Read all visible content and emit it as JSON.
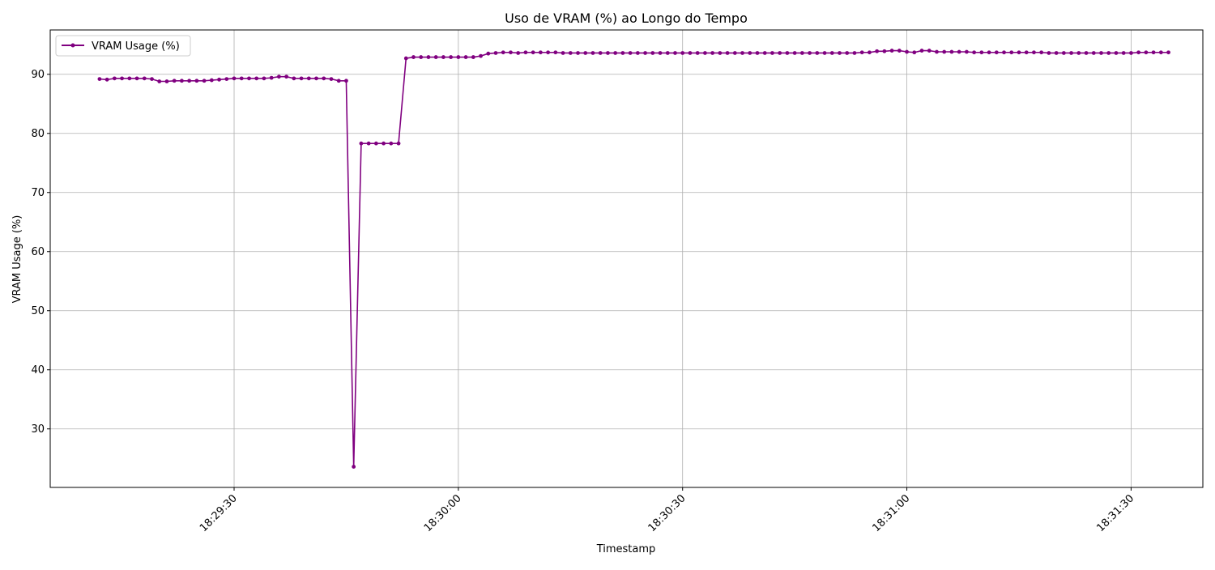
{
  "chart_data": {
    "type": "line",
    "title": "Uso de VRAM (%) ao Longo do Tempo",
    "xlabel": "Timestamp",
    "ylabel": "VRAM Usage (%)",
    "x_ticks": [
      "18:29:30",
      "18:30:00",
      "18:30:30",
      "18:31:00",
      "18:31:30"
    ],
    "x_tick_seconds": [
      30,
      60,
      90,
      120,
      150
    ],
    "y_ticks": [
      30,
      40,
      50,
      60,
      70,
      80,
      90
    ],
    "xlim_seconds": [
      5.4,
      159.6
    ],
    "ylim": [
      20.1,
      97.5
    ],
    "grid": true,
    "legend": {
      "position": "top-left",
      "entries": [
        "VRAM Usage (%)"
      ]
    },
    "color": "#800080",
    "x_start_seconds": 12,
    "x_step_seconds": 1,
    "series": [
      {
        "name": "VRAM Usage (%)",
        "values": [
          89.2,
          89.1,
          89.3,
          89.3,
          89.3,
          89.3,
          89.3,
          89.2,
          88.8,
          88.8,
          88.9,
          88.9,
          88.9,
          88.9,
          88.9,
          89.0,
          89.1,
          89.2,
          89.3,
          89.3,
          89.3,
          89.3,
          89.3,
          89.4,
          89.6,
          89.6,
          89.3,
          89.3,
          89.3,
          89.3,
          89.3,
          89.2,
          88.9,
          88.9,
          23.6,
          78.3,
          78.3,
          78.3,
          78.3,
          78.3,
          78.3,
          92.7,
          92.9,
          92.9,
          92.9,
          92.9,
          92.9,
          92.9,
          92.9,
          92.9,
          92.9,
          93.1,
          93.5,
          93.6,
          93.7,
          93.7,
          93.6,
          93.7,
          93.7,
          93.7,
          93.7,
          93.7,
          93.6,
          93.6,
          93.6,
          93.6,
          93.6,
          93.6,
          93.6,
          93.6,
          93.6,
          93.6,
          93.6,
          93.6,
          93.6,
          93.6,
          93.6,
          93.6,
          93.6,
          93.6,
          93.6,
          93.6,
          93.6,
          93.6,
          93.6,
          93.6,
          93.6,
          93.6,
          93.6,
          93.6,
          93.6,
          93.6,
          93.6,
          93.6,
          93.6,
          93.6,
          93.6,
          93.6,
          93.6,
          93.6,
          93.6,
          93.6,
          93.7,
          93.7,
          93.9,
          93.9,
          94.0,
          94.0,
          93.8,
          93.7,
          94.0,
          94.0,
          93.8,
          93.8,
          93.8,
          93.8,
          93.8,
          93.7,
          93.7,
          93.7,
          93.7,
          93.7,
          93.7,
          93.7,
          93.7,
          93.7,
          93.7,
          93.6,
          93.6,
          93.6,
          93.6,
          93.6,
          93.6,
          93.6,
          93.6,
          93.6,
          93.6,
          93.6,
          93.6,
          93.7,
          93.7,
          93.7,
          93.7,
          93.7
        ]
      }
    ]
  }
}
